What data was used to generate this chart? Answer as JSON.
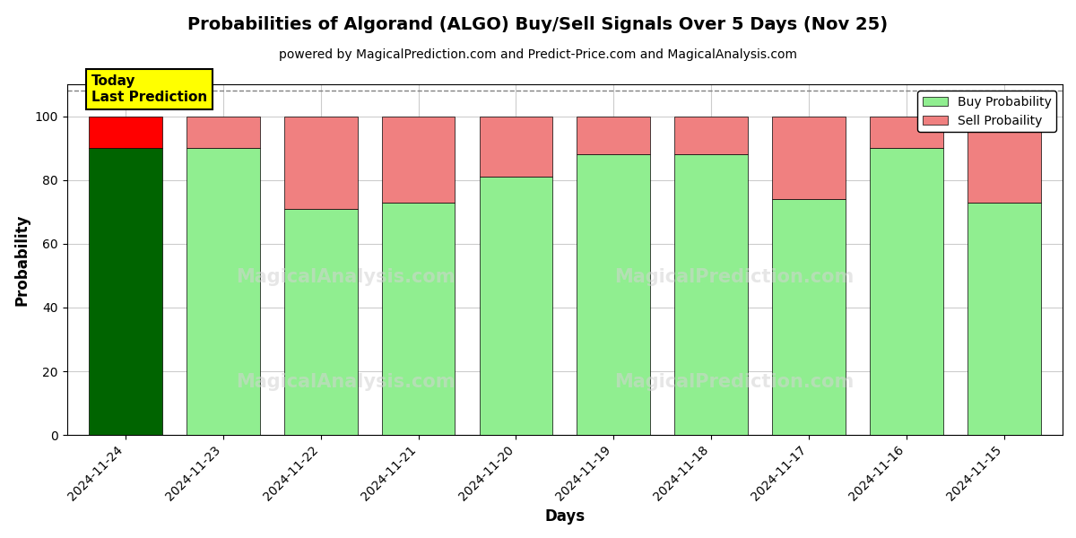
{
  "title": "Probabilities of Algorand (ALGO) Buy/Sell Signals Over 5 Days (Nov 25)",
  "subtitle": "powered by MagicalPrediction.com and Predict-Price.com and MagicalAnalysis.com",
  "xlabel": "Days",
  "ylabel": "Probability",
  "dates": [
    "2024-11-24",
    "2024-11-23",
    "2024-11-22",
    "2024-11-21",
    "2024-11-20",
    "2024-11-19",
    "2024-11-18",
    "2024-11-17",
    "2024-11-16",
    "2024-11-15"
  ],
  "buy_probs": [
    90,
    90,
    71,
    73,
    81,
    88,
    88,
    74,
    90,
    73
  ],
  "sell_probs": [
    10,
    10,
    29,
    27,
    19,
    12,
    12,
    26,
    10,
    27
  ],
  "today_idx": 0,
  "today_buy_color": "#006400",
  "today_sell_color": "#FF0000",
  "buy_color": "#90EE90",
  "sell_color": "#F08080",
  "today_label_bg": "#FFFF00",
  "today_label_text": "Today\nLast Prediction",
  "legend_buy": "Buy Probability",
  "legend_sell": "Sell Probaility",
  "ylim": [
    0,
    110
  ],
  "yticks": [
    0,
    20,
    40,
    60,
    80,
    100
  ],
  "dashed_line_y": 108,
  "watermark1": "MagicalAnalysis.com",
  "watermark2": "MagicalPrediction.com",
  "background_color": "#ffffff",
  "grid_color": "#cccccc"
}
